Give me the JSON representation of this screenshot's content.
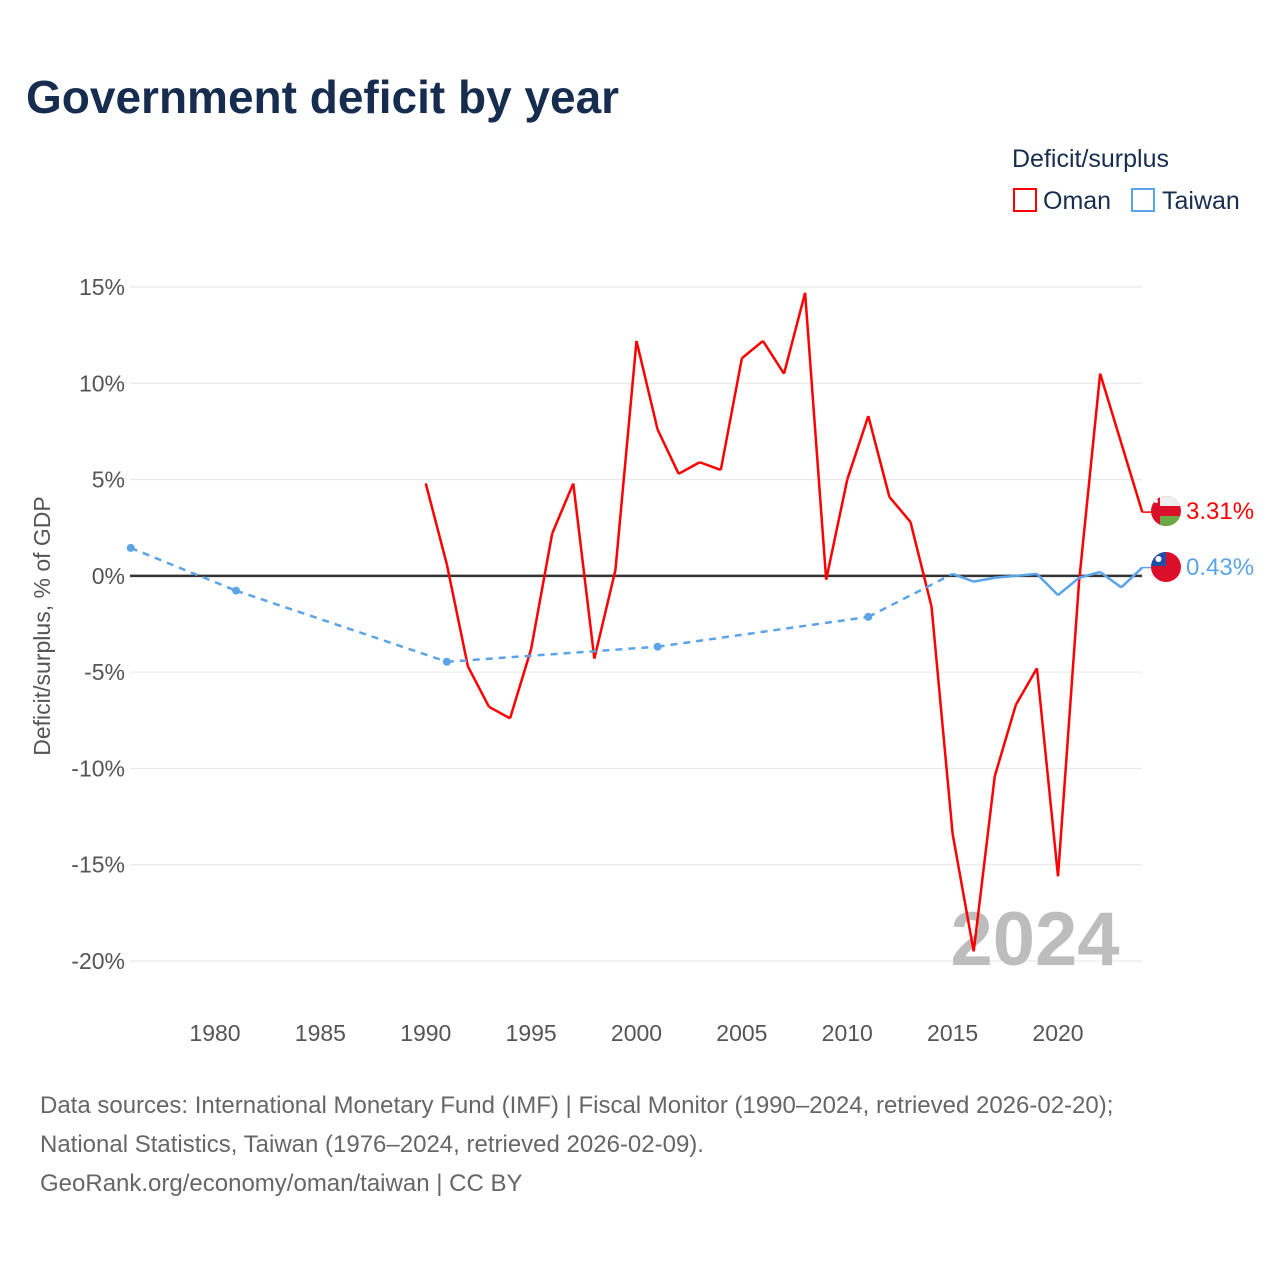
{
  "chart_data": {
    "type": "line",
    "title": "Government deficit by year",
    "ylabel": "Deficit/surplus, % of GDP",
    "xlabel": "",
    "ylim": [
      -20,
      15
    ],
    "xlim": [
      1976,
      2024
    ],
    "yticks": [
      15,
      10,
      5,
      0,
      -5,
      -10,
      -15,
      -20
    ],
    "ytick_labels": [
      "15%",
      "10%",
      "5%",
      "0%",
      "-5%",
      "-10%",
      "-15%",
      "-20%"
    ],
    "xticks": [
      1980,
      1985,
      1990,
      1995,
      2000,
      2005,
      2010,
      2015,
      2020
    ],
    "xtick_labels": [
      "1980",
      "1985",
      "1990",
      "1995",
      "2000",
      "2005",
      "2010",
      "2015",
      "2020"
    ],
    "grid": true,
    "legend": {
      "title": "Deficit/surplus",
      "position": "top-right",
      "entries": [
        "Oman",
        "Taiwan"
      ]
    },
    "year_watermark": "2024",
    "series": [
      {
        "name": "Oman",
        "color": "#ff0000",
        "end_label": "3.31%",
        "x": [
          1990,
          1991,
          1992,
          1993,
          1994,
          1995,
          1996,
          1997,
          1998,
          1999,
          2000,
          2001,
          2002,
          2003,
          2004,
          2005,
          2006,
          2007,
          2008,
          2009,
          2010,
          2011,
          2012,
          2013,
          2014,
          2015,
          2016,
          2017,
          2018,
          2019,
          2020,
          2021,
          2022,
          2023,
          2024
        ],
        "values": [
          4.8,
          0.6,
          -4.7,
          -6.8,
          -7.4,
          -3.8,
          2.2,
          4.8,
          -4.3,
          0.3,
          12.2,
          7.6,
          5.3,
          5.9,
          5.5,
          11.3,
          12.2,
          10.5,
          14.7,
          -0.2,
          5.0,
          8.3,
          4.1,
          2.8,
          -1.6,
          -13.4,
          -19.5,
          -10.4,
          -6.7,
          -4.8,
          -15.6,
          -0.3,
          10.5,
          6.9,
          3.31
        ]
      },
      {
        "name": "Taiwan",
        "color": "#5ba4e8",
        "end_label": "0.43%",
        "x": [
          1976,
          1981,
          1991,
          2001,
          2011,
          2015,
          2016,
          2017,
          2018,
          2019,
          2020,
          2021,
          2022,
          2023,
          2024
        ],
        "values": [
          1.45,
          -0.77,
          -4.46,
          -3.68,
          -2.13,
          0.1,
          -0.3,
          -0.1,
          0.0,
          0.1,
          -1.0,
          -0.1,
          0.2,
          -0.6,
          0.43
        ]
      }
    ]
  },
  "footer": {
    "line1": "Data sources: International Monetary Fund (IMF) | Fiscal Monitor (1990–2024, retrieved 2026-02-20);",
    "line2": "National Statistics, Taiwan (1976–2024, retrieved 2026-02-09).",
    "line3": "GeoRank.org/economy/oman/taiwan | CC BY"
  }
}
